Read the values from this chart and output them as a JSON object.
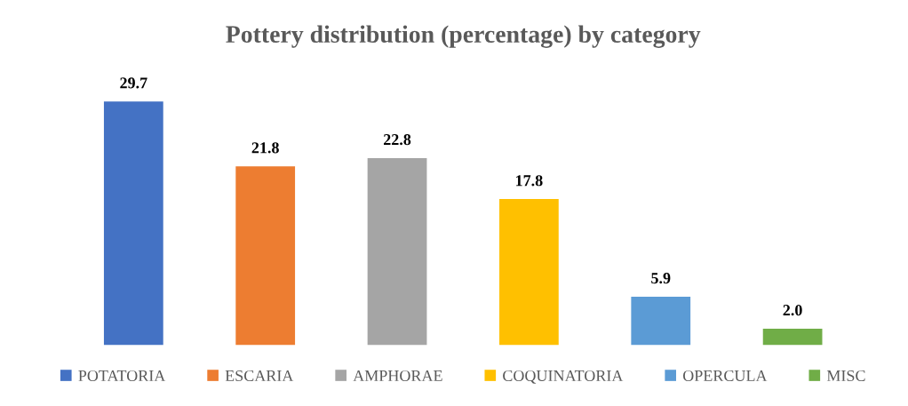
{
  "chart_data": {
    "type": "bar",
    "title": "Pottery distribution (percentage) by category",
    "categories": [
      null,
      null,
      null,
      null,
      null,
      null
    ],
    "series": [
      {
        "name": "POTATORIA",
        "color": "#4472c4",
        "values": [
          29.7,
          null,
          null,
          null,
          null,
          null
        ],
        "value_labels": [
          "29.7",
          null,
          null,
          null,
          null,
          null
        ]
      },
      {
        "name": "ESCARIA",
        "color": "#ed7d31",
        "values": [
          null,
          21.8,
          null,
          null,
          null,
          null
        ],
        "value_labels": [
          null,
          "21.8",
          null,
          null,
          null,
          null
        ]
      },
      {
        "name": "AMPHORAE",
        "color": "#a5a5a5",
        "values": [
          null,
          null,
          22.8,
          null,
          null,
          null
        ],
        "value_labels": [
          null,
          null,
          "22.8",
          null,
          null,
          null
        ]
      },
      {
        "name": "COQUINATORIA",
        "color": "#ffc000",
        "values": [
          null,
          null,
          null,
          17.8,
          null,
          null
        ],
        "value_labels": [
          null,
          null,
          null,
          "17.8",
          null,
          null
        ]
      },
      {
        "name": "OPERCULA",
        "color": "#5b9bd5",
        "values": [
          null,
          null,
          null,
          null,
          5.9,
          null
        ],
        "value_labels": [
          null,
          null,
          null,
          null,
          "5.9",
          null
        ]
      },
      {
        "name": "MISC",
        "color": "#70ad47",
        "values": [
          null,
          null,
          null,
          null,
          null,
          2.0
        ],
        "value_labels": [
          null,
          null,
          null,
          null,
          null,
          "2.0"
        ]
      }
    ],
    "stacked": true,
    "legend": "bottom",
    "tick_labels": false
  }
}
